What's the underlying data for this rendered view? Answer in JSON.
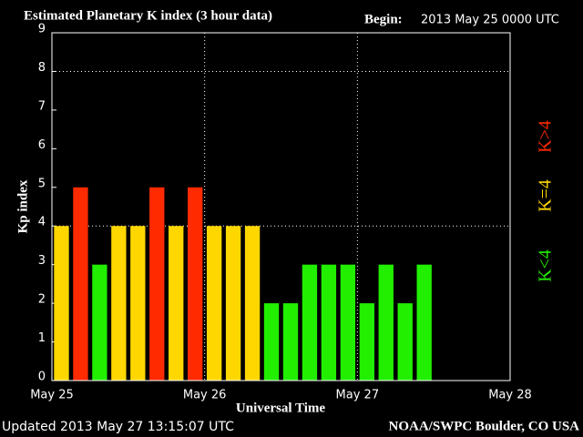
{
  "chart_data": {
    "type": "bar",
    "title": "Estimated Planetary K index (3 hour data)",
    "begin_label": "Begin:",
    "begin": "2013 May 25 0000 UTC",
    "y_label": "Kp index",
    "x_label": "Universal Time",
    "updated": "Updated 2013 May 27 13:15:07 UTC",
    "source": "NOAA/SWPC Boulder, CO USA",
    "x": [
      0,
      3,
      6,
      9,
      12,
      15,
      18,
      21,
      24,
      27,
      30,
      33,
      36,
      39,
      42,
      45,
      48,
      51,
      54,
      57
    ],
    "bar_width": 3,
    "values": [
      4,
      5,
      3,
      4,
      4,
      5,
      4,
      5,
      4,
      4,
      4,
      2,
      2,
      3,
      3,
      3,
      2,
      3,
      2,
      3
    ],
    "colors": [
      "#ffd700",
      "#ff2a00",
      "#22ee00",
      "#ffd700",
      "#ffd700",
      "#ff2a00",
      "#ffd700",
      "#ff2a00",
      "#ffd700",
      "#ffd700",
      "#ffd700",
      "#22ee00",
      "#22ee00",
      "#22ee00",
      "#22ee00",
      "#22ee00",
      "#22ee00",
      "#22ee00",
      "#22ee00",
      "#22ee00"
    ],
    "xlim": [
      0,
      72
    ],
    "xticks": [
      {
        "value": 0,
        "label": "May 25"
      },
      {
        "value": 24,
        "label": "May 26"
      },
      {
        "value": 48,
        "label": "May 27"
      },
      {
        "value": 72,
        "label": "May 28"
      }
    ],
    "ylim": [
      0,
      9
    ],
    "yticks": [
      0,
      1,
      2,
      3,
      4,
      5,
      6,
      7,
      8,
      9
    ],
    "hgrid": [
      4,
      8
    ],
    "legend": [
      {
        "name": "K<4",
        "color": "#22ee00"
      },
      {
        "name": "K=4",
        "color": "#ffd700"
      },
      {
        "name": "K>4",
        "color": "#ff2a00"
      }
    ]
  }
}
